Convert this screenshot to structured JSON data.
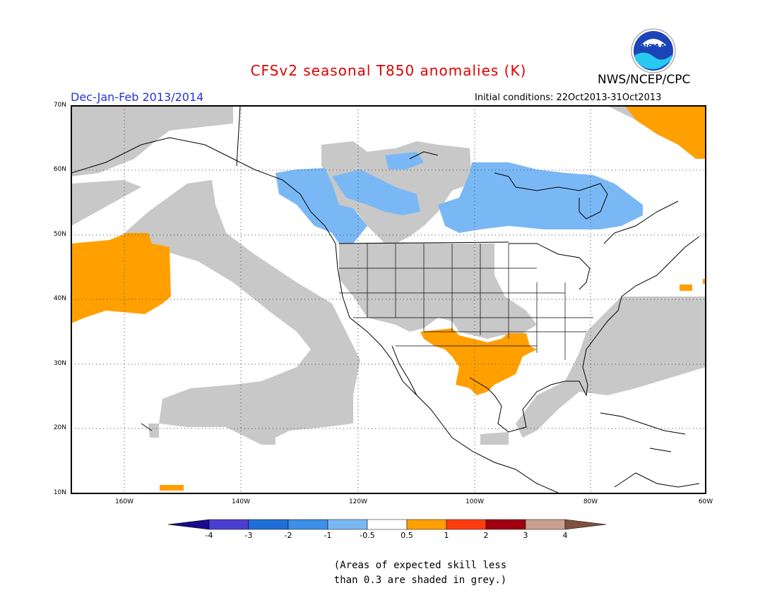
{
  "title": "CFSv2 seasonal T850 anomalies (K)",
  "season": "Dec-Jan-Feb 2013/2014",
  "initial_conditions": "Initial conditions: 22Oct2013-31Oct2013",
  "agency": "NWS/NCEP/CPC",
  "logo_text": "NOAA",
  "lat_labels": [
    "70N",
    "60N",
    "50N",
    "40N",
    "30N",
    "20N",
    "10N"
  ],
  "lon_labels": [
    "160W",
    "140W",
    "120W",
    "100W",
    "80W",
    "60W"
  ],
  "colorbar": {
    "labels": [
      "-4",
      "-3",
      "-2",
      "-1",
      "-0.5",
      "0.5",
      "1",
      "2",
      "3",
      "4"
    ],
    "colors": [
      "#1a0a8c",
      "#4a3fd0",
      "#1f6fd6",
      "#3d8fe8",
      "#7ab8f5",
      "#ffffff",
      "#ffa000",
      "#ff3c10",
      "#a00010",
      "#c8a090",
      "#805040"
    ]
  },
  "note_line1": "(Areas of expected skill less",
  "note_line2": "than 0.3 are shaded in grey.)",
  "legend_colors": {
    "grey": "#c8c8c8",
    "light_blue": "#7ab8f5",
    "orange": "#ffa000"
  }
}
